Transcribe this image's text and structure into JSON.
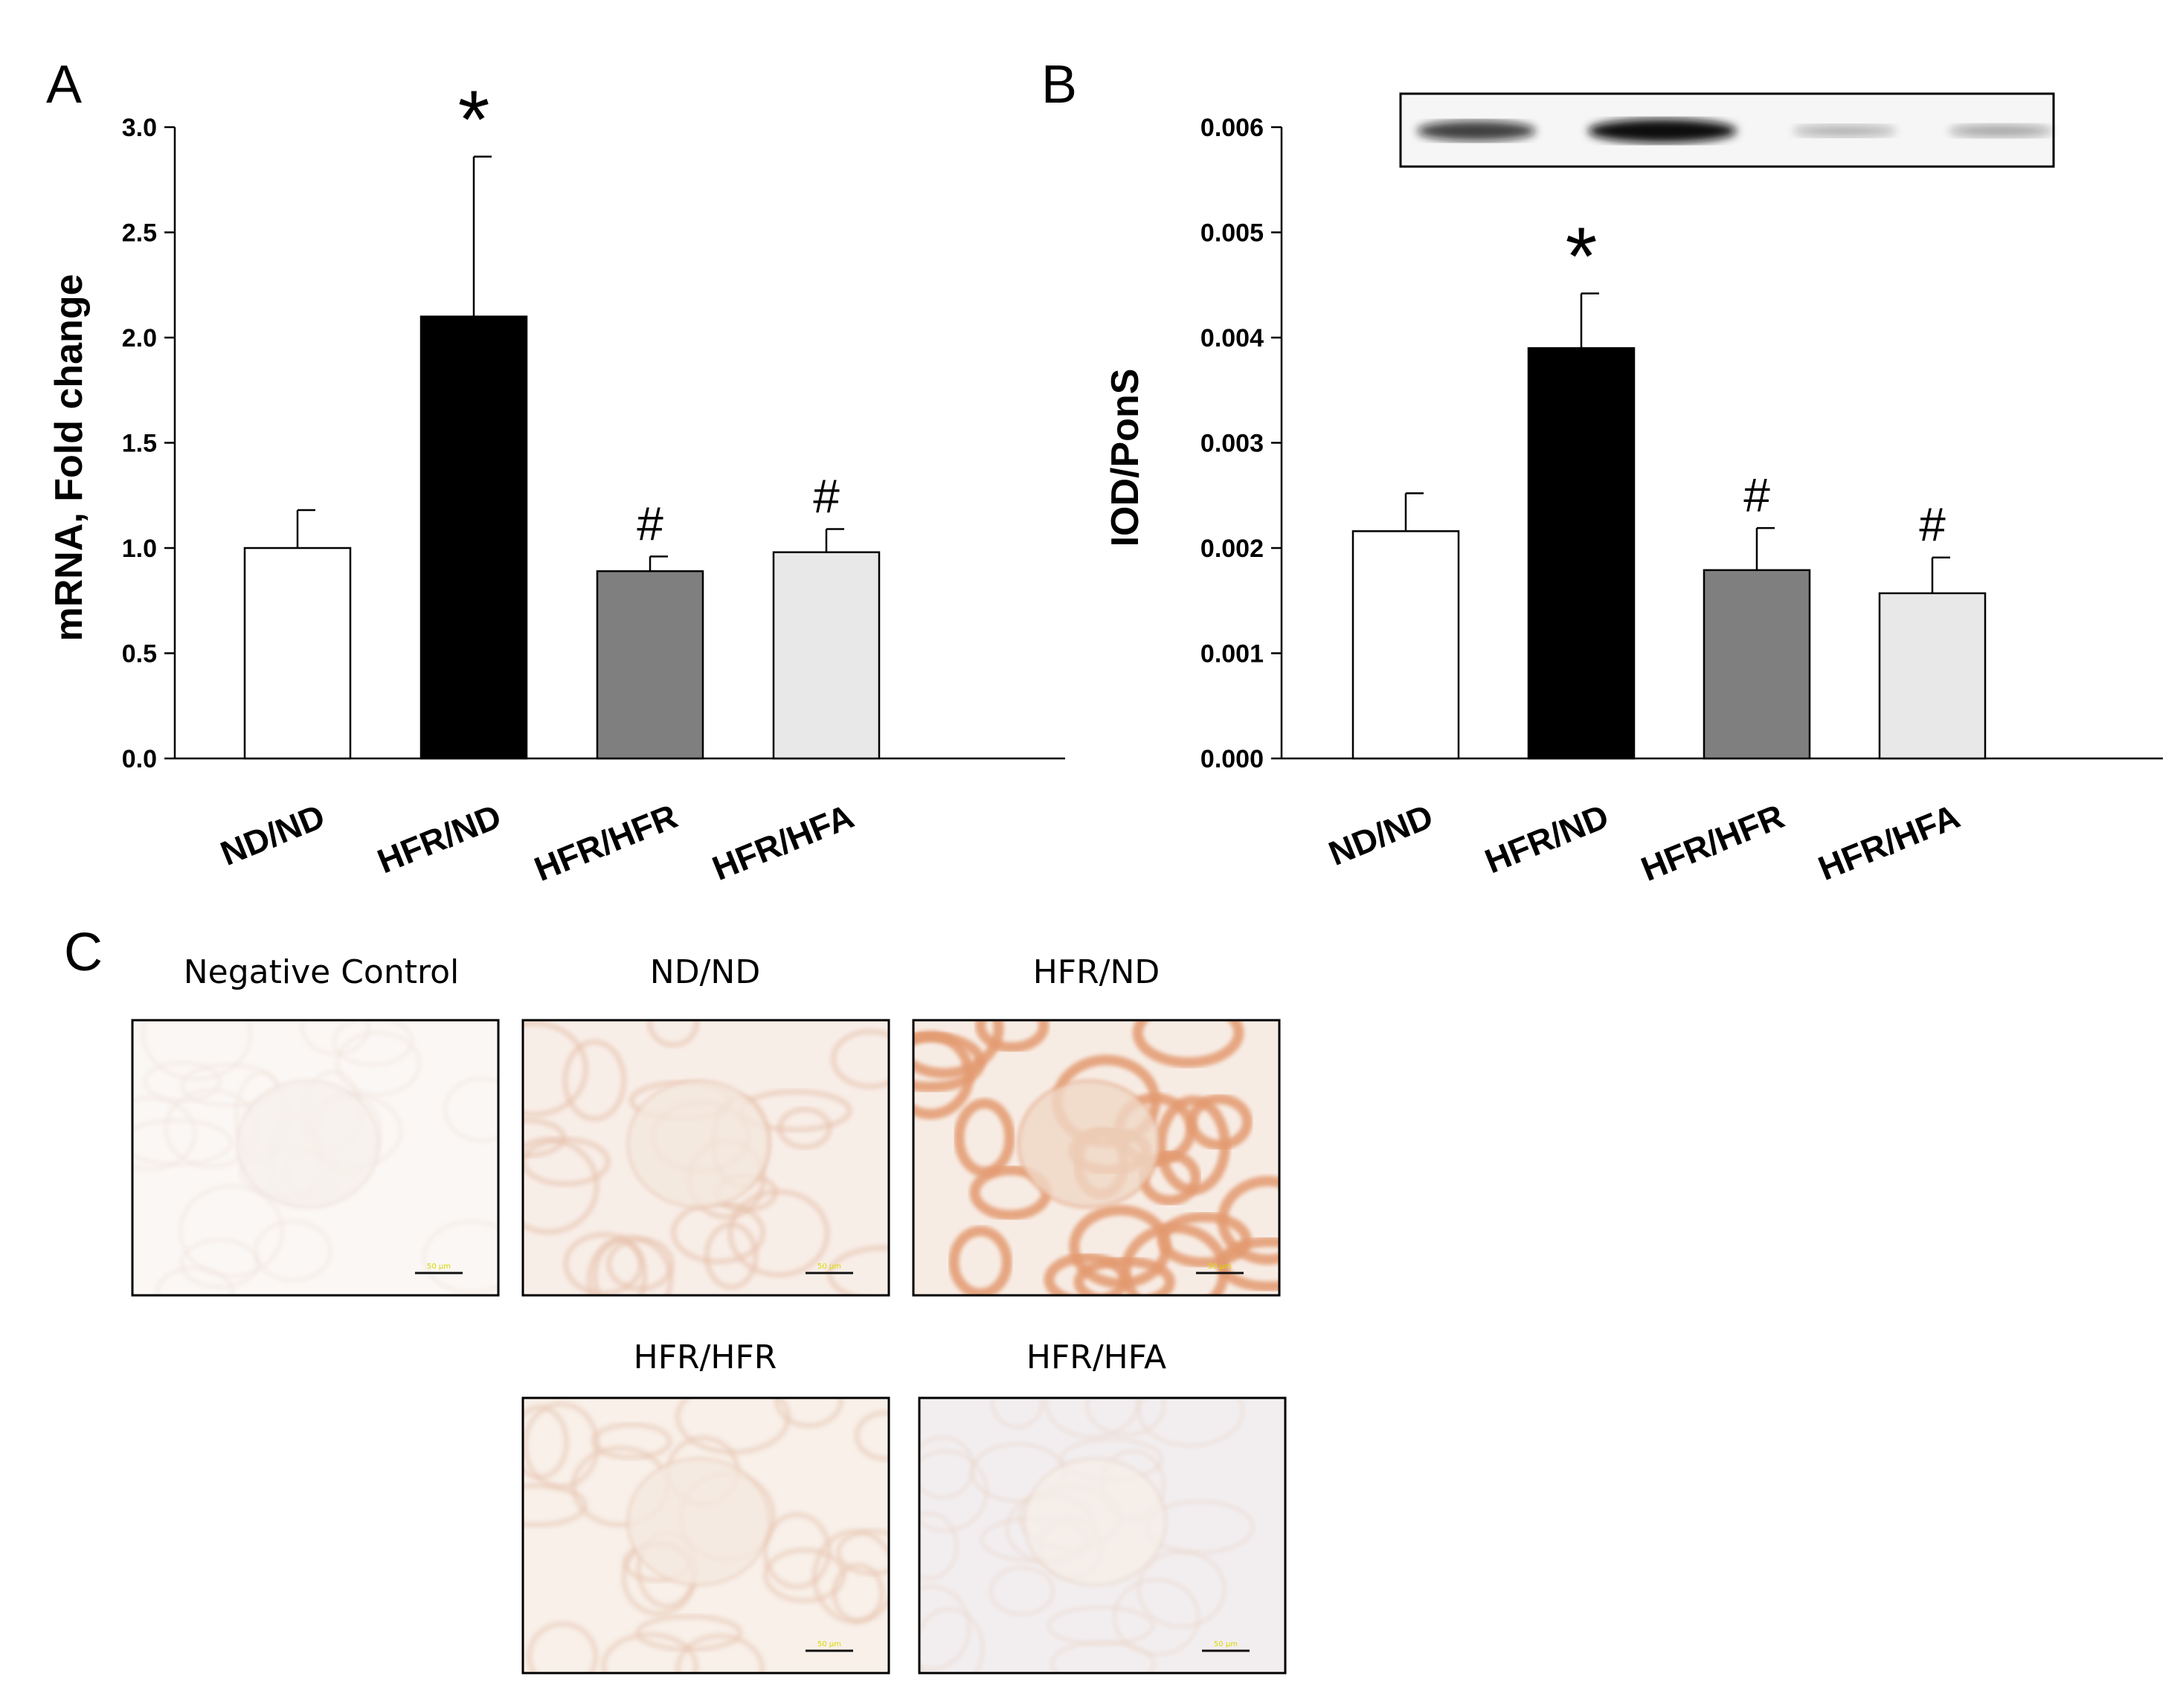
{
  "panels": {
    "A": {
      "letter": "A"
    },
    "B": {
      "letter": "B"
    },
    "C": {
      "letter": "C"
    }
  },
  "chart_data": [
    {
      "panel": "A",
      "type": "bar",
      "categories": [
        "ND/ND",
        "HFR/ND",
        "HFR/HFR",
        "HFR/HFA"
      ],
      "values": [
        1.0,
        2.1,
        0.89,
        0.98
      ],
      "error": [
        0.18,
        0.76,
        0.07,
        0.11
      ],
      "annotations": [
        "",
        "*",
        "#",
        "#"
      ],
      "bar_colors": [
        "#ffffff",
        "#000000",
        "#7f7f7f",
        "#e8e8e8"
      ],
      "ylabel": "mRNA, Fold change",
      "ylim": [
        0,
        3.0
      ],
      "yticks": [
        "0.0",
        "0.5",
        "1.0",
        "1.5",
        "2.0",
        "2.5",
        "3.0"
      ],
      "ytick_values": [
        0,
        0.5,
        1.0,
        1.5,
        2.0,
        2.5,
        3.0
      ]
    },
    {
      "panel": "B",
      "type": "bar",
      "categories": [
        "ND/ND",
        "HFR/ND",
        "HFR/HFR",
        "HFR/HFA"
      ],
      "values": [
        0.00216,
        0.0039,
        0.00179,
        0.00157
      ],
      "error": [
        0.00036,
        0.00052,
        0.0004,
        0.00034
      ],
      "annotations": [
        "",
        "*",
        "#",
        "#"
      ],
      "bar_colors": [
        "#ffffff",
        "#000000",
        "#7f7f7f",
        "#e8e8e8"
      ],
      "ylabel": "IOD/PonS",
      "ylim": [
        0,
        0.006
      ],
      "yticks": [
        "0.000",
        "0.001",
        "0.002",
        "0.003",
        "0.004",
        "0.005",
        "0.006"
      ],
      "ytick_values": [
        0,
        0.001,
        0.002,
        0.003,
        0.004,
        0.005,
        0.006
      ],
      "blot_band_intensity": [
        0.75,
        1.0,
        0.2,
        0.25
      ]
    }
  ],
  "micrographs": [
    {
      "label": "Negative Control",
      "stain": 0.05,
      "scale_text": "50 µm"
    },
    {
      "label": "ND/ND",
      "stain": 0.4,
      "scale_text": "50 µm"
    },
    {
      "label": "HFR/ND",
      "stain": 1.0,
      "scale_text": "50 µm"
    },
    {
      "label": "HFR/HFR",
      "stain": 0.35,
      "scale_text": "50 µm"
    },
    {
      "label": "HFR/HFA",
      "stain": 0.15,
      "scale_text": "50 µm"
    }
  ],
  "colors": {
    "stain_light": "#f7ece4",
    "stain_dark": "#e39a70",
    "blot_band": "#111111",
    "scale_text": "#d8d800"
  }
}
